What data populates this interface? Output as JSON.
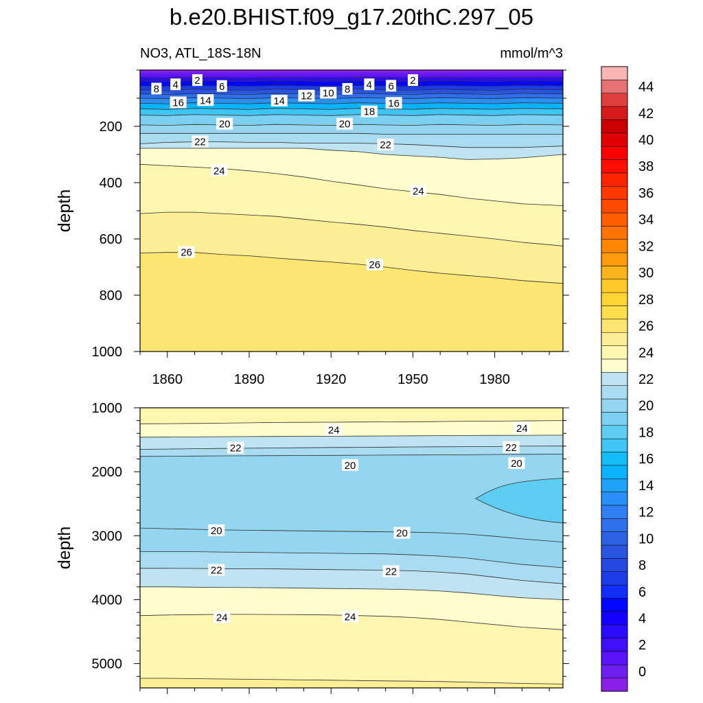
{
  "title": "b.e20.BHIST.f09_g17.20thC.297_05",
  "subtitle_left": "NO3, ATL_18S-18N",
  "subtitle_right": "mmol/m^3",
  "chart_data": [
    {
      "type": "heatmap",
      "panel": "upper",
      "variable": "NO3",
      "region": "ATL_18S-18N",
      "units": "mmol/m^3",
      "ylabel": "depth",
      "xlabel": "",
      "xlim": [
        1850,
        2005
      ],
      "ylim": [
        1000,
        0
      ],
      "y_reversed": true,
      "x_ticks": [
        1860,
        1890,
        1920,
        1950,
        1980
      ],
      "y_ticks": [
        200,
        400,
        600,
        800,
        1000
      ],
      "contour_interval": 1,
      "contour_years": [
        1850,
        1860,
        1870,
        1880,
        1890,
        1900,
        1910,
        1920,
        1930,
        1940,
        1950,
        1960,
        1970,
        1980,
        1990,
        2005
      ],
      "contours": [
        {
          "level": 2,
          "depths": [
            28,
            28,
            28,
            28,
            28,
            28,
            28,
            28,
            28,
            28,
            28,
            28,
            28,
            28,
            28,
            28
          ]
        },
        {
          "level": 4,
          "depths": [
            40,
            40,
            40,
            40,
            40,
            40,
            40,
            40,
            40,
            40,
            40,
            40,
            40,
            40,
            40,
            40
          ]
        },
        {
          "level": 6,
          "depths": [
            56,
            56,
            56,
            56,
            56,
            56,
            56,
            56,
            56,
            56,
            56,
            56,
            56,
            56,
            56,
            56
          ]
        },
        {
          "level": 8,
          "depths": [
            70,
            70,
            70,
            70,
            70,
            70,
            70,
            70,
            70,
            70,
            70,
            70,
            70,
            70,
            70,
            70
          ]
        },
        {
          "level": 10,
          "depths": [
            85,
            85,
            85,
            85,
            85,
            85,
            85,
            85,
            85,
            85,
            85,
            85,
            85,
            85,
            85,
            85
          ]
        },
        {
          "level": 12,
          "depths": [
            100,
            100,
            100,
            100,
            100,
            100,
            100,
            100,
            100,
            100,
            100,
            100,
            100,
            100,
            100,
            100
          ]
        },
        {
          "level": 14,
          "depths": [
            118,
            118,
            118,
            118,
            118,
            118,
            118,
            118,
            118,
            118,
            118,
            118,
            118,
            118,
            118,
            118
          ]
        },
        {
          "level": 16,
          "depths": [
            138,
            138,
            138,
            138,
            138,
            138,
            138,
            138,
            138,
            138,
            138,
            138,
            138,
            138,
            138,
            138
          ]
        },
        {
          "level": 18,
          "depths": [
            160,
            160,
            160,
            160,
            160,
            160,
            160,
            160,
            160,
            160,
            160,
            160,
            160,
            160,
            160,
            160
          ]
        },
        {
          "level": 20,
          "depths": [
            195,
            195,
            195,
            195,
            195,
            195,
            195,
            195,
            195,
            195,
            195,
            195,
            195,
            195,
            195,
            195
          ]
        },
        {
          "level": 21,
          "depths": [
            225,
            225,
            225,
            225,
            225,
            225,
            225,
            225,
            225,
            228,
            228,
            228,
            228,
            228,
            228,
            228
          ]
        },
        {
          "level": 22,
          "depths": [
            262,
            257,
            255,
            255,
            257,
            257,
            260,
            260,
            260,
            262,
            265,
            270,
            275,
            275,
            275,
            270
          ]
        },
        {
          "level": 23,
          "depths": [
            278,
            278,
            278,
            278,
            278,
            278,
            278,
            285,
            290,
            300,
            305,
            310,
            318,
            316,
            312,
            300
          ]
        },
        {
          "level": 24,
          "depths": [
            335,
            340,
            345,
            350,
            358,
            368,
            380,
            395,
            408,
            422,
            432,
            442,
            455,
            465,
            475,
            482
          ]
        },
        {
          "level": 25,
          "depths": [
            510,
            505,
            505,
            510,
            515,
            520,
            530,
            540,
            548,
            558,
            570,
            580,
            590,
            600,
            612,
            625
          ]
        },
        {
          "level": 26,
          "depths": [
            650,
            648,
            648,
            655,
            660,
            668,
            675,
            682,
            690,
            700,
            712,
            722,
            730,
            738,
            748,
            758
          ]
        }
      ],
      "contour_labels": [
        {
          "text": "2",
          "year": 1871,
          "depth": 37
        },
        {
          "text": "4",
          "year": 1863,
          "depth": 52
        },
        {
          "text": "8",
          "year": 1856,
          "depth": 67
        },
        {
          "text": "6",
          "year": 1880,
          "depth": 58
        },
        {
          "text": "16",
          "year": 1864,
          "depth": 116
        },
        {
          "text": "14",
          "year": 1874,
          "depth": 108
        },
        {
          "text": "14",
          "year": 1901,
          "depth": 110
        },
        {
          "text": "12",
          "year": 1911,
          "depth": 92
        },
        {
          "text": "10",
          "year": 1919,
          "depth": 82
        },
        {
          "text": "8",
          "year": 1926,
          "depth": 68
        },
        {
          "text": "4",
          "year": 1934,
          "depth": 52
        },
        {
          "text": "6",
          "year": 1942,
          "depth": 57
        },
        {
          "text": "2",
          "year": 1950,
          "depth": 37
        },
        {
          "text": "16",
          "year": 1943,
          "depth": 118
        },
        {
          "text": "18",
          "year": 1934,
          "depth": 148
        },
        {
          "text": "20",
          "year": 1881,
          "depth": 192
        },
        {
          "text": "20",
          "year": 1925,
          "depth": 192
        },
        {
          "text": "22",
          "year": 1872,
          "depth": 255
        },
        {
          "text": "22",
          "year": 1940,
          "depth": 266
        },
        {
          "text": "24",
          "year": 1879,
          "depth": 358
        },
        {
          "text": "24",
          "year": 1952,
          "depth": 430
        },
        {
          "text": "26",
          "year": 1867,
          "depth": 648
        },
        {
          "text": "26",
          "year": 1936,
          "depth": 692
        }
      ]
    },
    {
      "type": "heatmap",
      "panel": "lower",
      "variable": "NO3",
      "region": "ATL_18S-18N",
      "units": "mmol/m^3",
      "ylabel": "depth",
      "xlabel": "",
      "xlim": [
        1850,
        2005
      ],
      "ylim": [
        5380,
        1000
      ],
      "y_reversed": true,
      "x_ticks": [
        1860,
        1890,
        1920,
        1950,
        1980
      ],
      "y_ticks": [
        1000,
        2000,
        3000,
        4000,
        5000
      ],
      "contour_interval": 1,
      "contour_years": [
        1850,
        1860,
        1870,
        1880,
        1890,
        1900,
        1910,
        1920,
        1930,
        1940,
        1950,
        1960,
        1970,
        1980,
        1990,
        2005
      ],
      "contours": [
        {
          "level": 24,
          "depths": [
            1250,
            1248,
            1245,
            1240,
            1235,
            1230,
            1228,
            1225,
            1222,
            1220,
            1218,
            1215,
            1210,
            1208,
            1205,
            1200
          ]
        },
        {
          "level": 23,
          "depths": [
            1460,
            1458,
            1455,
            1452,
            1450,
            1448,
            1446,
            1444,
            1442,
            1440,
            1438,
            1436,
            1434,
            1432,
            1430,
            1428
          ]
        },
        {
          "level": 22,
          "depths": [
            1650,
            1645,
            1640,
            1635,
            1632,
            1628,
            1625,
            1620,
            1618,
            1615,
            1612,
            1610,
            1608,
            1605,
            1600,
            1598
          ]
        },
        {
          "level": 21,
          "depths": [
            1760,
            1758,
            1755,
            1752,
            1750,
            1748,
            1746,
            1744,
            1742,
            1740,
            1738,
            1736,
            1734,
            1730,
            1728,
            1725
          ]
        },
        {
          "level": 20,
          "depths": [
            2880,
            2890,
            2900,
            2910,
            2915,
            2920,
            2925,
            2930,
            2935,
            2940,
            2945,
            2955,
            2975,
            3010,
            3050,
            3100
          ]
        },
        {
          "level": 21,
          "depths": [
            3250,
            3250,
            3250,
            3255,
            3260,
            3265,
            3270,
            3275,
            3280,
            3285,
            3300,
            3320,
            3350,
            3400,
            3450,
            3500
          ]
        },
        {
          "level": 22,
          "depths": [
            3510,
            3510,
            3512,
            3515,
            3518,
            3520,
            3525,
            3530,
            3535,
            3540,
            3550,
            3570,
            3600,
            3650,
            3700,
            3750
          ]
        },
        {
          "level": 23,
          "depths": [
            3800,
            3800,
            3805,
            3808,
            3812,
            3815,
            3820,
            3825,
            3830,
            3835,
            3845,
            3865,
            3895,
            3935,
            3970,
            4000
          ]
        },
        {
          "level": 24,
          "depths": [
            4250,
            4240,
            4235,
            4230,
            4230,
            4232,
            4235,
            4240,
            4250,
            4260,
            4280,
            4310,
            4350,
            4390,
            4430,
            4470
          ]
        },
        {
          "level": 25,
          "depths": [
            5230,
            5230,
            5235,
            5240,
            5245,
            5250,
            5255,
            5260,
            5265,
            5270,
            5275,
            5280,
            5290,
            5300,
            5310,
            5320
          ]
        }
      ],
      "lens_region": {
        "level": 19,
        "tip": [
          1973,
          2420
        ],
        "edge_year": 2005,
        "edge_depths": [
          2100,
          2800
        ]
      },
      "contour_labels": [
        {
          "text": "24",
          "year": 1921,
          "depth": 1350
        },
        {
          "text": "24",
          "year": 1990,
          "depth": 1320
        },
        {
          "text": "22",
          "year": 1885,
          "depth": 1630
        },
        {
          "text": "22",
          "year": 1986,
          "depth": 1620
        },
        {
          "text": "20",
          "year": 1927,
          "depth": 1900
        },
        {
          "text": "20",
          "year": 1988,
          "depth": 1870
        },
        {
          "text": "20",
          "year": 1878,
          "depth": 2920
        },
        {
          "text": "20",
          "year": 1946,
          "depth": 2960
        },
        {
          "text": "22",
          "year": 1878,
          "depth": 3540
        },
        {
          "text": "22",
          "year": 1942,
          "depth": 3560
        },
        {
          "text": "24",
          "year": 1880,
          "depth": 4280
        },
        {
          "text": "24",
          "year": 1927,
          "depth": 4270
        }
      ]
    }
  ],
  "colorbar": {
    "min": -1,
    "max": 46,
    "interval": 1,
    "tick_labels": [
      "0",
      "2",
      "4",
      "6",
      "8",
      "10",
      "12",
      "14",
      "16",
      "18",
      "20",
      "22",
      "24",
      "26",
      "28",
      "30",
      "32",
      "34",
      "36",
      "38",
      "40",
      "42",
      "44"
    ],
    "colors": [
      "#8a20e6",
      "#6e1ff0",
      "#5a12f7",
      "#4010fb",
      "#2a0cff",
      "#1400ff",
      "#0006ff",
      "#0f2eff",
      "#1c3ce8",
      "#2448e0",
      "#2954e0",
      "#2c62e4",
      "#2f70ec",
      "#2f80f5",
      "#2a8ff8",
      "#1ea2fa",
      "#0bb3fb",
      "#12bcf6",
      "#3ec5f4",
      "#5ecdf2",
      "#7bcff0",
      "#94d5f0",
      "#a9dcf0",
      "#bfe3f1",
      "#fefdcd",
      "#fdf6b1",
      "#fcee94",
      "#fde572",
      "#fede4d",
      "#fed535",
      "#fdc92a",
      "#fdb31b",
      "#fe9b0b",
      "#fe8702",
      "#ff7304",
      "#ff5e00",
      "#fe4a00",
      "#fe3600",
      "#fd2400",
      "#fe0d00",
      "#fb0000",
      "#e00000",
      "#cc0000",
      "#d71a1a",
      "#df3e3e",
      "#e67272",
      "#f9b4b4"
    ]
  }
}
